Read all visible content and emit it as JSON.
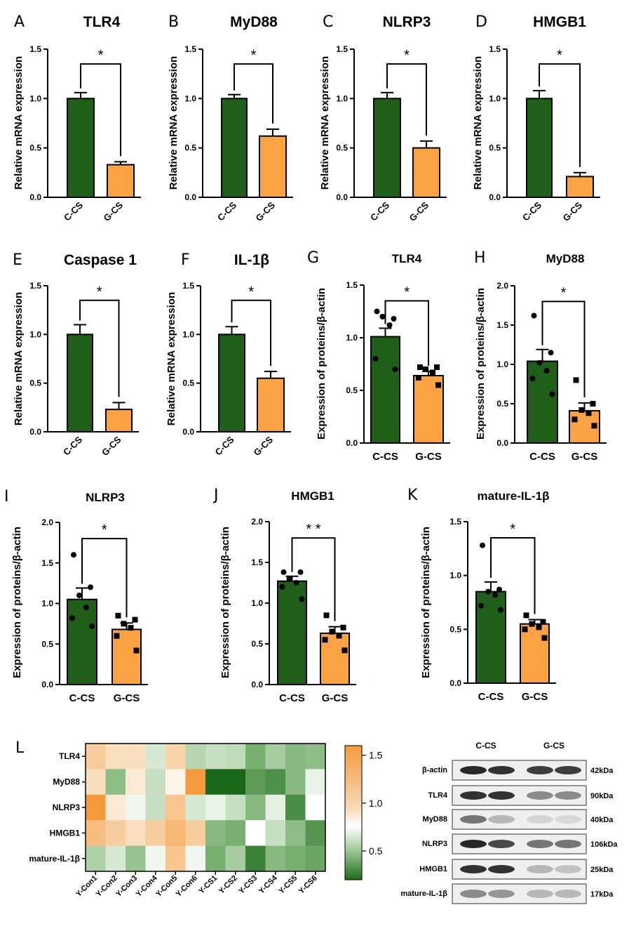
{
  "colors": {
    "ctrl": "#1f5f19",
    "treat": "#fba245",
    "axis": "#000000"
  },
  "figure": {
    "panels": [
      {
        "letter": "A",
        "title": "TLR4",
        "ylabel": "Relative mRNA expression",
        "sig": "*",
        "yticks": [
          "0.0",
          "0.5",
          "1.0",
          "1.5"
        ]
      },
      {
        "letter": "B",
        "title": "MyD88",
        "ylabel": "Relative mRNA expression",
        "sig": "*",
        "yticks": [
          "0.0",
          "0.5",
          "1.0",
          "1.5"
        ]
      },
      {
        "letter": "C",
        "title": "NLRP3",
        "ylabel": "Relative mRNA expression",
        "sig": "*",
        "yticks": [
          "0.0",
          "0.5",
          "1.0",
          "1.5"
        ]
      },
      {
        "letter": "D",
        "title": "HMGB1",
        "ylabel": "Relative mRNA expression",
        "sig": "*",
        "yticks": [
          "0.0",
          "0.5",
          "1.0",
          "1.5"
        ]
      },
      {
        "letter": "E",
        "title": "Caspase 1",
        "ylabel": "Relative mRNA expression",
        "sig": "*",
        "yticks": [
          "0.0",
          "0.5",
          "1.0",
          "1.5"
        ]
      },
      {
        "letter": "F",
        "title": "IL-1β",
        "ylabel": "Relative mRNA expression",
        "sig": "*",
        "yticks": [
          "0.0",
          "0.5",
          "1.0",
          "1.5"
        ]
      },
      {
        "letter": "G",
        "title": "TLR4",
        "ylabel": "Expression of proteins/β-actin",
        "sig": "*",
        "yticks": [
          "0.0",
          "0.5",
          "1.0",
          "1.5"
        ]
      },
      {
        "letter": "H",
        "title": "MyD88",
        "ylabel": "Expression of proteins/β-actin",
        "sig": "*",
        "yticks": [
          "0.0",
          "0.5",
          "1.0",
          "1.5",
          "2.0"
        ]
      },
      {
        "letter": "I",
        "title": "NLRP3",
        "ylabel": "Expression of proteins/β-actin",
        "sig": "*",
        "yticks": [
          "0.0",
          "0.5",
          "1.0",
          "1.5",
          "2.0"
        ]
      },
      {
        "letter": "J",
        "title": "HMGB1",
        "ylabel": "Expression of proteins/β-actin",
        "sig": "* *",
        "yticks": [
          "0.0",
          "0.5",
          "1.0",
          "1.5",
          "2.0"
        ]
      },
      {
        "letter": "K",
        "title": "mature-IL-1β",
        "ylabel": "Expression of proteins/β-actin",
        "sig": "*",
        "yticks": [
          "0.0",
          "0.5",
          "1.0",
          "1.5"
        ]
      }
    ],
    "heatmap": {
      "letter": "L",
      "colorbar_ticks": [
        "1.5",
        "1.0",
        "0.5"
      ],
      "wb_group_labels": [
        "C-CS",
        "G-CS"
      ],
      "wb_rows": [
        {
          "name": "β-actin",
          "size": "42kDa"
        },
        {
          "name": "TLR4",
          "size": "90kDa"
        },
        {
          "name": "MyD88",
          "size": "40kDa"
        },
        {
          "name": "NLRP3",
          "size": "106kDa"
        },
        {
          "name": "HMGB1",
          "size": "25kDa"
        },
        {
          "name": "mature-IL-1β",
          "size": "17kDa"
        }
      ]
    }
  },
  "chart_data": [
    {
      "type": "bar",
      "panel": "A",
      "title": "TLR4",
      "categories": [
        "C-CS",
        "G-CS"
      ],
      "values": [
        1.0,
        0.33
      ],
      "errors": [
        0.06,
        0.03
      ],
      "ylabel": "Relative mRNA expression",
      "ylim": [
        0,
        1.5
      ]
    },
    {
      "type": "bar",
      "panel": "B",
      "title": "MyD88",
      "categories": [
        "C-CS",
        "G-CS"
      ],
      "values": [
        1.0,
        0.62
      ],
      "errors": [
        0.04,
        0.07
      ],
      "ylabel": "Relative mRNA expression",
      "ylim": [
        0,
        1.5
      ]
    },
    {
      "type": "bar",
      "panel": "C",
      "title": "NLRP3",
      "categories": [
        "C-CS",
        "G-CS"
      ],
      "values": [
        1.0,
        0.5
      ],
      "errors": [
        0.06,
        0.07
      ],
      "ylabel": "Relative mRNA expression",
      "ylim": [
        0,
        1.5
      ]
    },
    {
      "type": "bar",
      "panel": "D",
      "title": "HMGB1",
      "categories": [
        "C-CS",
        "G-CS"
      ],
      "values": [
        1.0,
        0.21
      ],
      "errors": [
        0.08,
        0.04
      ],
      "ylabel": "Relative mRNA expression",
      "ylim": [
        0,
        1.5
      ]
    },
    {
      "type": "bar",
      "panel": "E",
      "title": "Caspase 1",
      "categories": [
        "C-CS",
        "G-CS"
      ],
      "values": [
        1.0,
        0.23
      ],
      "errors": [
        0.1,
        0.07
      ],
      "ylabel": "Relative mRNA expression",
      "ylim": [
        0,
        1.5
      ]
    },
    {
      "type": "bar",
      "panel": "F",
      "title": "IL-1β",
      "categories": [
        "C-CS",
        "G-CS"
      ],
      "values": [
        1.0,
        0.55
      ],
      "errors": [
        0.08,
        0.07
      ],
      "ylabel": "Relative mRNA expression",
      "ylim": [
        0,
        1.5
      ]
    },
    {
      "type": "bar",
      "panel": "G",
      "title": "TLR4",
      "categories": [
        "C-CS",
        "G-CS"
      ],
      "values": [
        1.01,
        0.64
      ],
      "errors": [
        0.08,
        0.04
      ],
      "points": [
        [
          1.25,
          1.18,
          1.2,
          1.12,
          0.8,
          0.7
        ],
        [
          0.72,
          0.72,
          0.7,
          0.67,
          0.62,
          0.55
        ]
      ],
      "ylabel": "Expression of proteins/β-actin",
      "ylim": [
        0,
        1.5
      ]
    },
    {
      "type": "bar",
      "panel": "H",
      "title": "MyD88",
      "categories": [
        "C-CS",
        "G-CS"
      ],
      "values": [
        1.04,
        0.41
      ],
      "errors": [
        0.15,
        0.1
      ],
      "points": [
        [
          1.62,
          1.15,
          1.02,
          0.92,
          0.82,
          0.62
        ],
        [
          0.8,
          0.5,
          0.42,
          0.38,
          0.3,
          0.22
        ]
      ],
      "ylabel": "Expression of proteins/β-actin",
      "ylim": [
        0,
        2.0
      ]
    },
    {
      "type": "bar",
      "panel": "I",
      "title": "NLRP3",
      "categories": [
        "C-CS",
        "G-CS"
      ],
      "values": [
        1.05,
        0.68
      ],
      "errors": [
        0.14,
        0.08
      ],
      "points": [
        [
          1.6,
          1.2,
          1.1,
          0.95,
          0.82,
          0.72
        ],
        [
          0.85,
          0.8,
          0.75,
          0.7,
          0.6,
          0.42
        ]
      ],
      "ylabel": "Expression of proteins/β-actin",
      "ylim": [
        0,
        2.0
      ]
    },
    {
      "type": "bar",
      "panel": "J",
      "title": "HMGB1",
      "categories": [
        "C-CS",
        "G-CS"
      ],
      "values": [
        1.27,
        0.63
      ],
      "errors": [
        0.06,
        0.08
      ],
      "points": [
        [
          1.38,
          1.38,
          1.3,
          1.25,
          1.2,
          1.05
        ],
        [
          0.85,
          0.7,
          0.65,
          0.6,
          0.55,
          0.42
        ]
      ],
      "ylabel": "Expression of proteins/β-actin",
      "ylim": [
        0,
        2.0
      ]
    },
    {
      "type": "bar",
      "panel": "K",
      "title": "mature-IL-1β",
      "categories": [
        "C-CS",
        "G-CS"
      ],
      "values": [
        0.85,
        0.55
      ],
      "errors": [
        0.09,
        0.04
      ],
      "points": [
        [
          1.28,
          0.87,
          0.85,
          0.82,
          0.72,
          0.68
        ],
        [
          0.63,
          0.57,
          0.55,
          0.52,
          0.5,
          0.42
        ]
      ],
      "ylabel": "Expression of proteins/β-actin",
      "ylim": [
        0,
        1.5
      ]
    },
    {
      "type": "heatmap",
      "panel": "L",
      "rows": [
        "TLR4",
        "MyD88",
        "NLRP3",
        "HMGB1",
        "mature-IL-1β"
      ],
      "columns": [
        "Y-Con1",
        "Y-Con2",
        "Y-Con3",
        "Y-Con4",
        "Y-Con5",
        "Y-Con6",
        "Y-CS1",
        "Y-CS2",
        "Y-CS3",
        "Y-CS4",
        "Y-CS5",
        "Y-CS6"
      ],
      "values": [
        [
          1.25,
          1.15,
          1.15,
          0.85,
          1.2,
          0.75,
          0.8,
          0.78,
          0.55,
          0.7,
          0.6,
          0.62
        ],
        [
          1.15,
          0.62,
          1.1,
          0.8,
          1.05,
          1.6,
          0.1,
          0.15,
          0.45,
          0.4,
          0.6,
          0.92
        ],
        [
          1.6,
          1.1,
          0.95,
          0.8,
          1.3,
          0.85,
          0.92,
          0.8,
          0.6,
          0.9,
          0.38,
          1.0
        ],
        [
          1.35,
          1.25,
          1.15,
          1.25,
          1.4,
          1.25,
          0.6,
          0.55,
          1.0,
          0.8,
          0.62,
          0.42
        ],
        [
          0.72,
          0.85,
          0.65,
          0.95,
          1.3,
          0.95,
          0.55,
          0.7,
          0.32,
          0.6,
          0.55,
          0.5
        ]
      ],
      "colorbar_range": [
        0.2,
        1.6
      ],
      "colorbar_ticks": [
        1.5,
        1.0,
        0.5
      ]
    }
  ]
}
